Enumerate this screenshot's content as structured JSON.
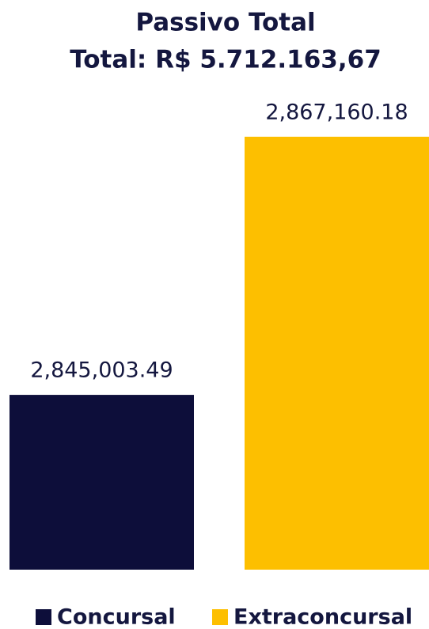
{
  "chart_data": {
    "type": "bar",
    "title": "Passivo Total",
    "subtitle": "Total: R$ 5.712.163,67",
    "categories": [
      "Concursal",
      "Extraconcursal"
    ],
    "series": [
      {
        "name": "Concursal",
        "color": "#0d0e3a",
        "values": [
          2845003.49,
          null
        ],
        "value_labels": [
          "2,845,003.49",
          null
        ]
      },
      {
        "name": "Extraconcursal",
        "color": "#fdbf00",
        "values": [
          null,
          2867160.18
        ],
        "value_labels": [
          null,
          "2,867,160.18"
        ]
      }
    ],
    "ylim": [
      2830000,
      2870000
    ],
    "grid": false,
    "legend": "bottom"
  }
}
